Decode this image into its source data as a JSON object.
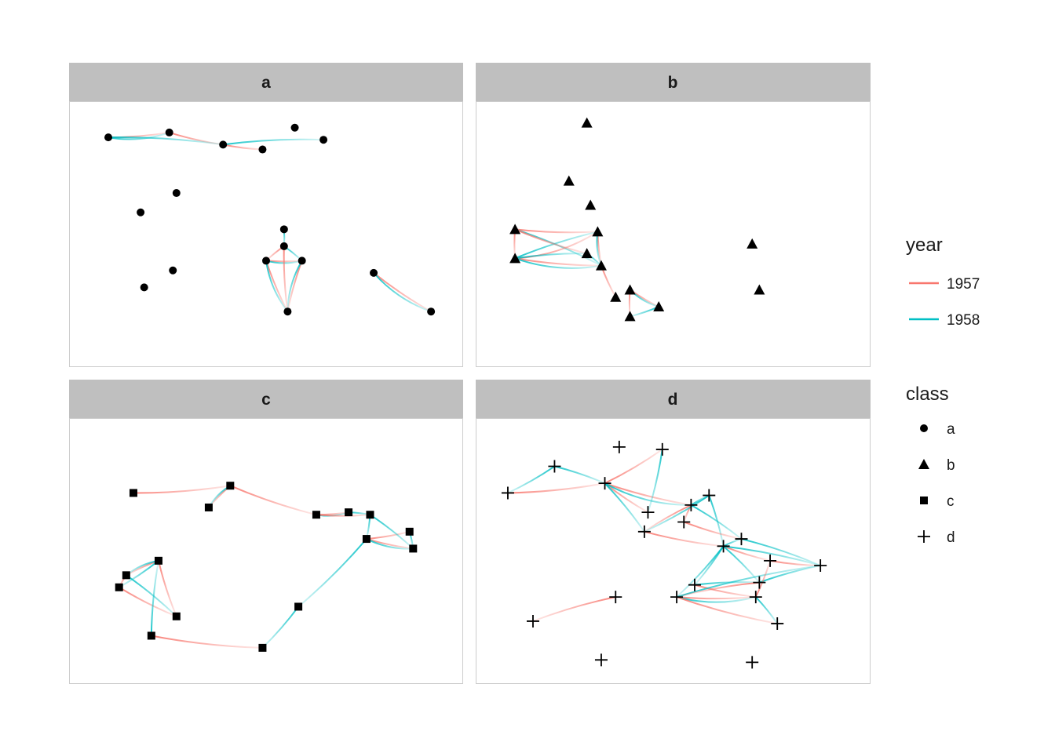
{
  "chart_data": {
    "type": "network",
    "xlabel": "",
    "ylabel": "",
    "facets": [
      {
        "name": "a",
        "nodes": [
          [
            0.06,
            0.9
          ],
          [
            0.23,
            0.92
          ],
          [
            0.38,
            0.87
          ],
          [
            0.49,
            0.85
          ],
          [
            0.58,
            0.94
          ],
          [
            0.66,
            0.89
          ],
          [
            0.25,
            0.67
          ],
          [
            0.15,
            0.59
          ],
          [
            0.55,
            0.52
          ],
          [
            0.55,
            0.45
          ],
          [
            0.5,
            0.39
          ],
          [
            0.6,
            0.39
          ],
          [
            0.24,
            0.35
          ],
          [
            0.16,
            0.28
          ],
          [
            0.56,
            0.18
          ],
          [
            0.8,
            0.34
          ],
          [
            0.96,
            0.18
          ]
        ],
        "edges": [
          {
            "from": 0,
            "to": 1,
            "year": "1957"
          },
          {
            "from": 0,
            "to": 1,
            "year": "1958"
          },
          {
            "from": 1,
            "to": 2,
            "year": "1957"
          },
          {
            "from": 0,
            "to": 2,
            "year": "1958"
          },
          {
            "from": 2,
            "to": 3,
            "year": "1957"
          },
          {
            "from": 2,
            "to": 5,
            "year": "1958"
          },
          {
            "from": 8,
            "to": 9,
            "year": "1958"
          },
          {
            "from": 9,
            "to": 10,
            "year": "1957"
          },
          {
            "from": 9,
            "to": 11,
            "year": "1958"
          },
          {
            "from": 10,
            "to": 11,
            "year": "1957"
          },
          {
            "from": 10,
            "to": 11,
            "year": "1958"
          },
          {
            "from": 10,
            "to": 14,
            "year": "1957"
          },
          {
            "from": 10,
            "to": 14,
            "year": "1958"
          },
          {
            "from": 11,
            "to": 14,
            "year": "1957"
          },
          {
            "from": 11,
            "to": 14,
            "year": "1958"
          },
          {
            "from": 9,
            "to": 14,
            "year": "1957"
          },
          {
            "from": 15,
            "to": 16,
            "year": "1957"
          },
          {
            "from": 15,
            "to": 16,
            "year": "1958"
          }
        ]
      },
      {
        "name": "b",
        "nodes": [
          [
            0.26,
            0.96
          ],
          [
            0.21,
            0.72
          ],
          [
            0.27,
            0.62
          ],
          [
            0.06,
            0.52
          ],
          [
            0.29,
            0.51
          ],
          [
            0.26,
            0.42
          ],
          [
            0.06,
            0.4
          ],
          [
            0.3,
            0.37
          ],
          [
            0.34,
            0.24
          ],
          [
            0.38,
            0.27
          ],
          [
            0.46,
            0.2
          ],
          [
            0.38,
            0.16
          ],
          [
            0.72,
            0.46
          ],
          [
            0.74,
            0.27
          ]
        ],
        "edges": [
          {
            "from": 3,
            "to": 4,
            "year": "1957"
          },
          {
            "from": 3,
            "to": 7,
            "year": "1958"
          },
          {
            "from": 3,
            "to": 6,
            "year": "1957"
          },
          {
            "from": 6,
            "to": 4,
            "year": "1958"
          },
          {
            "from": 6,
            "to": 4,
            "year": "1957"
          },
          {
            "from": 6,
            "to": 7,
            "year": "1957"
          },
          {
            "from": 6,
            "to": 7,
            "year": "1958"
          },
          {
            "from": 6,
            "to": 5,
            "year": "1958"
          },
          {
            "from": 3,
            "to": 5,
            "year": "1957"
          },
          {
            "from": 4,
            "to": 7,
            "year": "1957"
          },
          {
            "from": 4,
            "to": 7,
            "year": "1958"
          },
          {
            "from": 5,
            "to": 7,
            "year": "1958"
          },
          {
            "from": 7,
            "to": 8,
            "year": "1957"
          },
          {
            "from": 9,
            "to": 10,
            "year": "1957"
          },
          {
            "from": 9,
            "to": 11,
            "year": "1957"
          },
          {
            "from": 10,
            "to": 11,
            "year": "1958"
          },
          {
            "from": 9,
            "to": 10,
            "year": "1958"
          }
        ]
      },
      {
        "name": "c",
        "nodes": [
          [
            0.13,
            0.74
          ],
          [
            0.4,
            0.77
          ],
          [
            0.34,
            0.68
          ],
          [
            0.64,
            0.65
          ],
          [
            0.73,
            0.66
          ],
          [
            0.79,
            0.65
          ],
          [
            0.78,
            0.55
          ],
          [
            0.9,
            0.58
          ],
          [
            0.91,
            0.51
          ],
          [
            0.2,
            0.46
          ],
          [
            0.11,
            0.4
          ],
          [
            0.09,
            0.35
          ],
          [
            0.25,
            0.23
          ],
          [
            0.18,
            0.15
          ],
          [
            0.49,
            0.1
          ],
          [
            0.59,
            0.27
          ]
        ],
        "edges": [
          {
            "from": 0,
            "to": 1,
            "year": "1957"
          },
          {
            "from": 1,
            "to": 2,
            "year": "1957"
          },
          {
            "from": 1,
            "to": 2,
            "year": "1958"
          },
          {
            "from": 1,
            "to": 3,
            "year": "1957"
          },
          {
            "from": 3,
            "to": 4,
            "year": "1957"
          },
          {
            "from": 3,
            "to": 4,
            "year": "1958"
          },
          {
            "from": 4,
            "to": 5,
            "year": "1958"
          },
          {
            "from": 3,
            "to": 5,
            "year": "1957"
          },
          {
            "from": 5,
            "to": 6,
            "year": "1958"
          },
          {
            "from": 6,
            "to": 7,
            "year": "1957"
          },
          {
            "from": 6,
            "to": 8,
            "year": "1957"
          },
          {
            "from": 6,
            "to": 8,
            "year": "1958"
          },
          {
            "from": 7,
            "to": 8,
            "year": "1958"
          },
          {
            "from": 5,
            "to": 8,
            "year": "1958"
          },
          {
            "from": 6,
            "to": 15,
            "year": "1958"
          },
          {
            "from": 15,
            "to": 14,
            "year": "1958"
          },
          {
            "from": 13,
            "to": 14,
            "year": "1957"
          },
          {
            "from": 9,
            "to": 10,
            "year": "1957"
          },
          {
            "from": 9,
            "to": 10,
            "year": "1958"
          },
          {
            "from": 9,
            "to": 11,
            "year": "1958"
          },
          {
            "from": 9,
            "to": 12,
            "year": "1957"
          },
          {
            "from": 10,
            "to": 12,
            "year": "1958"
          },
          {
            "from": 11,
            "to": 12,
            "year": "1957"
          },
          {
            "from": 13,
            "to": 9,
            "year": "1958"
          },
          {
            "from": 10,
            "to": 11,
            "year": "1957"
          }
        ]
      },
      {
        "name": "d",
        "nodes": [
          [
            0.35,
            0.93
          ],
          [
            0.47,
            0.92
          ],
          [
            0.17,
            0.85
          ],
          [
            0.04,
            0.74
          ],
          [
            0.31,
            0.78
          ],
          [
            0.43,
            0.66
          ],
          [
            0.55,
            0.69
          ],
          [
            0.6,
            0.73
          ],
          [
            0.53,
            0.62
          ],
          [
            0.42,
            0.58
          ],
          [
            0.69,
            0.55
          ],
          [
            0.64,
            0.52
          ],
          [
            0.77,
            0.46
          ],
          [
            0.91,
            0.44
          ],
          [
            0.74,
            0.37
          ],
          [
            0.56,
            0.36
          ],
          [
            0.51,
            0.31
          ],
          [
            0.73,
            0.31
          ],
          [
            0.34,
            0.31
          ],
          [
            0.11,
            0.21
          ],
          [
            0.79,
            0.2
          ],
          [
            0.3,
            0.05
          ],
          [
            0.72,
            0.04
          ]
        ],
        "edges": [
          {
            "from": 2,
            "to": 3,
            "year": "1958"
          },
          {
            "from": 2,
            "to": 4,
            "year": "1958"
          },
          {
            "from": 3,
            "to": 4,
            "year": "1957"
          },
          {
            "from": 4,
            "to": 1,
            "year": "1957"
          },
          {
            "from": 4,
            "to": 5,
            "year": "1957"
          },
          {
            "from": 4,
            "to": 6,
            "year": "1957"
          },
          {
            "from": 4,
            "to": 6,
            "year": "1958"
          },
          {
            "from": 4,
            "to": 9,
            "year": "1958"
          },
          {
            "from": 1,
            "to": 5,
            "year": "1958"
          },
          {
            "from": 6,
            "to": 7,
            "year": "1958"
          },
          {
            "from": 6,
            "to": 8,
            "year": "1957"
          },
          {
            "from": 6,
            "to": 9,
            "year": "1957"
          },
          {
            "from": 6,
            "to": 10,
            "year": "1958"
          },
          {
            "from": 7,
            "to": 9,
            "year": "1958"
          },
          {
            "from": 7,
            "to": 11,
            "year": "1958"
          },
          {
            "from": 8,
            "to": 10,
            "year": "1957"
          },
          {
            "from": 9,
            "to": 11,
            "year": "1957"
          },
          {
            "from": 11,
            "to": 10,
            "year": "1958"
          },
          {
            "from": 11,
            "to": 12,
            "year": "1957"
          },
          {
            "from": 11,
            "to": 13,
            "year": "1958"
          },
          {
            "from": 12,
            "to": 13,
            "year": "1957"
          },
          {
            "from": 10,
            "to": 13,
            "year": "1958"
          },
          {
            "from": 11,
            "to": 14,
            "year": "1958"
          },
          {
            "from": 11,
            "to": 15,
            "year": "1958"
          },
          {
            "from": 11,
            "to": 16,
            "year": "1958"
          },
          {
            "from": 15,
            "to": 14,
            "year": "1958"
          },
          {
            "from": 16,
            "to": 17,
            "year": "1957"
          },
          {
            "from": 16,
            "to": 17,
            "year": "1958"
          },
          {
            "from": 16,
            "to": 20,
            "year": "1957"
          },
          {
            "from": 17,
            "to": 20,
            "year": "1958"
          },
          {
            "from": 15,
            "to": 17,
            "year": "1957"
          },
          {
            "from": 16,
            "to": 13,
            "year": "1958"
          },
          {
            "from": 14,
            "to": 16,
            "year": "1957"
          },
          {
            "from": 18,
            "to": 19,
            "year": "1957"
          },
          {
            "from": 14,
            "to": 13,
            "year": "1958"
          },
          {
            "from": 17,
            "to": 12,
            "year": "1957"
          }
        ]
      }
    ],
    "legend": {
      "placement": "right",
      "year": {
        "title": "year",
        "items": [
          {
            "label": "1957",
            "color": "#F8766D"
          },
          {
            "label": "1958",
            "color": "#00BFC4"
          }
        ]
      },
      "class": {
        "title": "class",
        "items": [
          {
            "label": "a",
            "shape": "circle"
          },
          {
            "label": "b",
            "shape": "triangle"
          },
          {
            "label": "c",
            "shape": "square"
          },
          {
            "label": "d",
            "shape": "plus"
          }
        ]
      }
    }
  }
}
